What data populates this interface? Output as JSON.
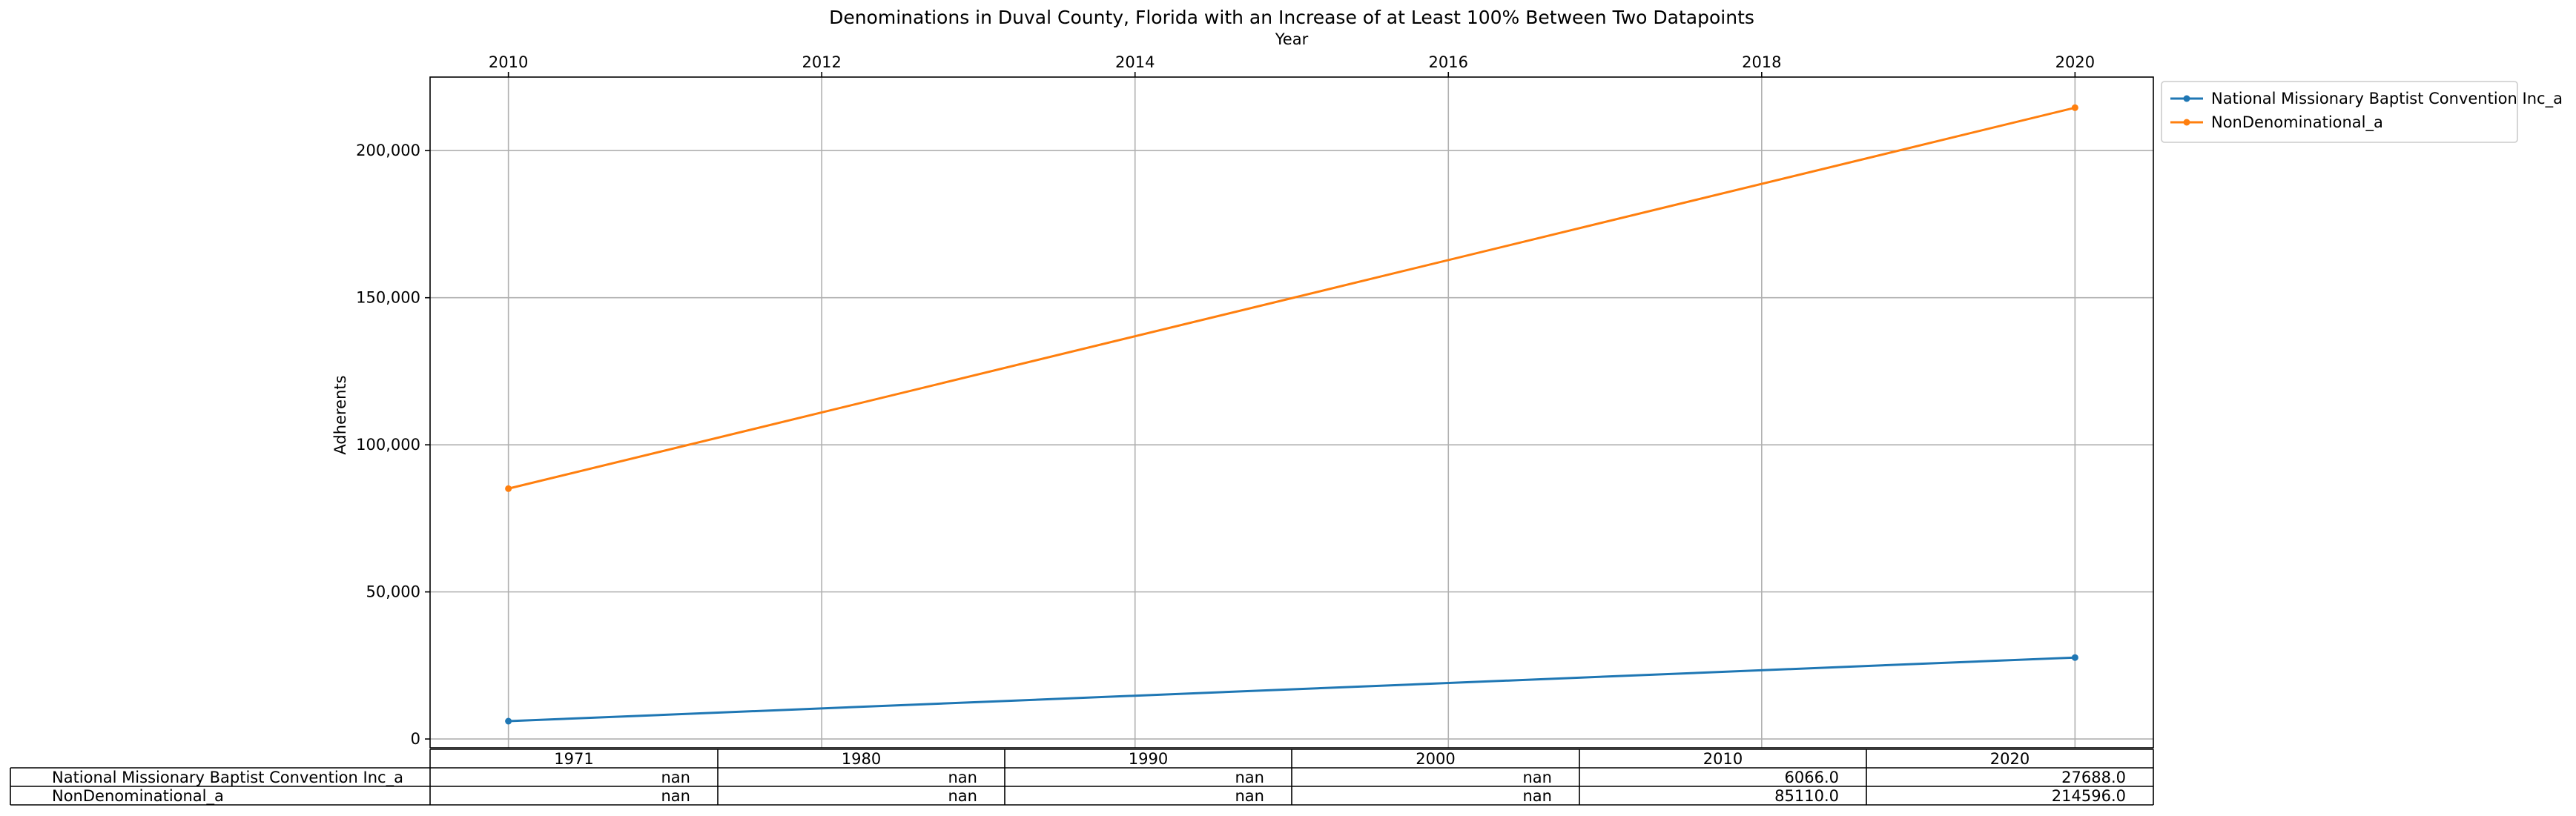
{
  "chart_data": {
    "type": "line",
    "title": "Denominations in Duval County, Florida with an Increase of at Least 100% Between Two Datapoints",
    "xlabel": "Year",
    "ylabel": "Adherents",
    "xlim": [
      2009.5,
      2020.5
    ],
    "ylim": [
      -3000,
      225000
    ],
    "x_ticks": [
      2010,
      2012,
      2014,
      2016,
      2018,
      2020
    ],
    "x_tick_labels": [
      "2010",
      "2012",
      "2014",
      "2016",
      "2018",
      "2020"
    ],
    "y_ticks": [
      0,
      50000,
      100000,
      150000,
      200000
    ],
    "y_tick_labels": [
      "0",
      "50,000",
      "100,000",
      "150,000",
      "200,000"
    ],
    "x_axis_position": "top",
    "grid": true,
    "legend_position": "outside-right-top",
    "series": [
      {
        "name": "National Missionary Baptist Convention Inc_a",
        "color": "#1f77b4",
        "x": [
          2010,
          2020
        ],
        "values": [
          6066,
          27688
        ]
      },
      {
        "name": "NonDenominational_a",
        "color": "#ff7f0e",
        "x": [
          2010,
          2020
        ],
        "values": [
          85110,
          214596
        ]
      }
    ],
    "table": {
      "columns": [
        "1971",
        "1980",
        "1990",
        "2000",
        "2010",
        "2020"
      ],
      "rows": [
        {
          "label": "National Missionary Baptist Convention Inc_a",
          "cells": [
            "nan",
            "nan",
            "nan",
            "nan",
            "6066.0",
            "27688.0"
          ]
        },
        {
          "label": "NonDenominational_a",
          "cells": [
            "nan",
            "nan",
            "nan",
            "nan",
            "85110.0",
            "214596.0"
          ]
        }
      ]
    }
  }
}
